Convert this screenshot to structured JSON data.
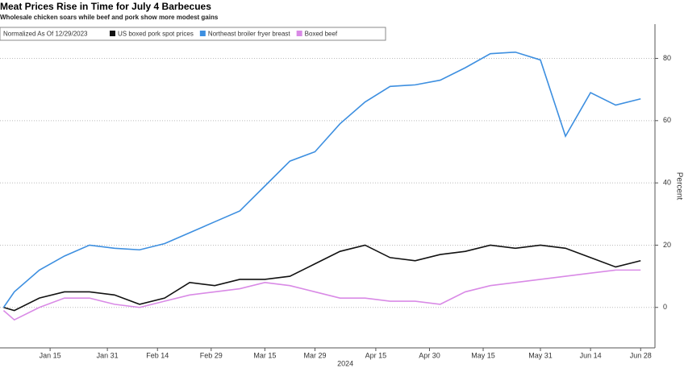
{
  "chart_data": {
    "type": "line",
    "title": "Meat Prices Rise in Time for July 4 Barbecues",
    "subtitle": "Wholesale chicken soars while beef and pork show more modest gains",
    "legend_title": "Normalized As Of 12/29/2023",
    "y_label": "Percent",
    "x_label": "2024",
    "x": [
      "2024-01-02",
      "2024-01-05",
      "2024-01-12",
      "2024-01-19",
      "2024-01-26",
      "2024-02-02",
      "2024-02-09",
      "2024-02-16",
      "2024-02-23",
      "2024-03-01",
      "2024-03-08",
      "2024-03-15",
      "2024-03-22",
      "2024-03-29",
      "2024-04-05",
      "2024-04-12",
      "2024-04-19",
      "2024-04-26",
      "2024-05-03",
      "2024-05-10",
      "2024-05-17",
      "2024-05-24",
      "2024-05-31",
      "2024-06-07",
      "2024-06-14",
      "2024-06-21",
      "2024-06-28"
    ],
    "series": [
      {
        "name": "US boxed pork spot prices",
        "color": "#111111",
        "values": [
          0,
          -1,
          3,
          5,
          5,
          4,
          1,
          3,
          8,
          7,
          9,
          9,
          10,
          14,
          18,
          20,
          16,
          15,
          17,
          18,
          20,
          19,
          20,
          19,
          16,
          13,
          15
        ]
      },
      {
        "name": "Northeast broiler fryer breast",
        "color": "#3d8fe0",
        "values": [
          0,
          5,
          12,
          16.5,
          20,
          19,
          18.5,
          20.5,
          24,
          27.5,
          31,
          39,
          47,
          50,
          59,
          66,
          71,
          71.5,
          73,
          77,
          81.5,
          82,
          79.5,
          55,
          69,
          65,
          67
        ]
      },
      {
        "name": "Boxed beef",
        "color": "#d98ae6",
        "values": [
          -1,
          -4,
          0,
          3,
          3,
          1,
          0,
          2,
          4,
          5,
          6,
          8,
          7,
          5,
          3,
          3,
          2,
          2,
          1,
          5,
          7,
          8,
          9,
          10,
          11,
          12,
          12
        ]
      }
    ],
    "xlim": [
      "2024-01-01",
      "2024-07-02"
    ],
    "xticks": [
      {
        "value": "2024-01-15",
        "label": "Jan 15"
      },
      {
        "value": "2024-01-31",
        "label": "Jan 31"
      },
      {
        "value": "2024-02-14",
        "label": "Feb 14"
      },
      {
        "value": "2024-02-29",
        "label": "Feb 29"
      },
      {
        "value": "2024-03-15",
        "label": "Mar 15"
      },
      {
        "value": "2024-03-29",
        "label": "Mar 29"
      },
      {
        "value": "2024-04-15",
        "label": "Apr 15"
      },
      {
        "value": "2024-04-30",
        "label": "Apr 30"
      },
      {
        "value": "2024-05-15",
        "label": "May 15"
      },
      {
        "value": "2024-05-31",
        "label": "May 31"
      },
      {
        "value": "2024-06-14",
        "label": "Jun 14"
      },
      {
        "value": "2024-06-28",
        "label": "Jun 28"
      }
    ],
    "ylim": [
      -13,
      91
    ],
    "yticks": [
      0,
      20,
      40,
      60,
      80
    ],
    "grid": true
  }
}
